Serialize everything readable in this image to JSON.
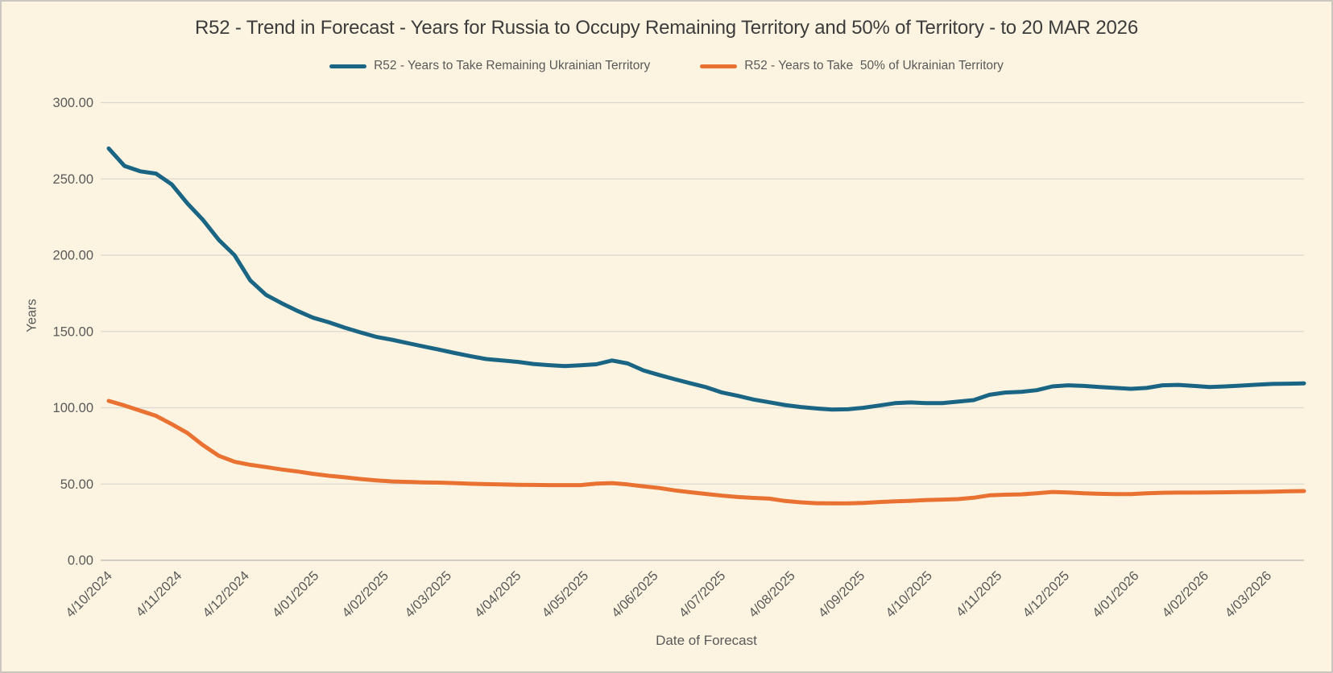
{
  "colors": {
    "background": "#FCF4E1",
    "frame_border": "#C9C7C0",
    "title_text": "#3C3C3C",
    "axis_text": "#595959",
    "gridline": "#DAD8D0",
    "axis_line": "#C2C0B8",
    "series_remaining_blue": "#1A6484",
    "series_50pct_orange": "#E97132"
  },
  "chart_data": {
    "type": "line",
    "title": "R52 - Trend in Forecast - Years for Russia to Occupy Remaining Territory and 50% of Territory - to 20 MAR 2026",
    "xlabel": "Date of Forecast",
    "ylabel": "Years",
    "ylim": [
      0,
      300
    ],
    "grid": "horizontal",
    "legend_position": "top",
    "y_ticks": [
      {
        "value": 0,
        "label": "0.00"
      },
      {
        "value": 50,
        "label": "50.00"
      },
      {
        "value": 100,
        "label": "100.00"
      },
      {
        "value": 150,
        "label": "150.00"
      },
      {
        "value": 200,
        "label": "200.00"
      },
      {
        "value": 250,
        "label": "250.00"
      },
      {
        "value": 300,
        "label": "300.00"
      }
    ],
    "x_ticks": [
      {
        "label": "4/10/2024",
        "date": "2024-10-04"
      },
      {
        "label": "4/11/2024",
        "date": "2024-11-04"
      },
      {
        "label": "4/12/2024",
        "date": "2024-12-04"
      },
      {
        "label": "4/01/2025",
        "date": "2025-01-04"
      },
      {
        "label": "4/02/2025",
        "date": "2025-02-04"
      },
      {
        "label": "4/03/2025",
        "date": "2025-03-04"
      },
      {
        "label": "4/04/2025",
        "date": "2025-04-04"
      },
      {
        "label": "4/05/2025",
        "date": "2025-05-04"
      },
      {
        "label": "4/06/2025",
        "date": "2025-06-04"
      },
      {
        "label": "4/07/2025",
        "date": "2025-07-04"
      },
      {
        "label": "4/08/2025",
        "date": "2025-08-04"
      },
      {
        "label": "4/09/2025",
        "date": "2025-09-04"
      },
      {
        "label": "4/10/2025",
        "date": "2025-10-04"
      },
      {
        "label": "4/11/2025",
        "date": "2025-11-04"
      },
      {
        "label": "4/12/2025",
        "date": "2025-12-04"
      },
      {
        "label": "4/01/2026",
        "date": "2026-01-04"
      },
      {
        "label": "4/02/2026",
        "date": "2026-02-04"
      },
      {
        "label": "4/03/2026",
        "date": "2026-03-04"
      }
    ],
    "dates": [
      "2024-10-04",
      "2024-10-11",
      "2024-10-18",
      "2024-10-25",
      "2024-11-01",
      "2024-11-08",
      "2024-11-15",
      "2024-11-22",
      "2024-11-29",
      "2024-12-06",
      "2024-12-13",
      "2024-12-20",
      "2024-12-27",
      "2025-01-03",
      "2025-01-10",
      "2025-01-17",
      "2025-01-24",
      "2025-01-31",
      "2025-02-07",
      "2025-02-14",
      "2025-02-21",
      "2025-02-28",
      "2025-03-07",
      "2025-03-14",
      "2025-03-21",
      "2025-03-28",
      "2025-04-04",
      "2025-04-11",
      "2025-04-18",
      "2025-04-25",
      "2025-05-02",
      "2025-05-09",
      "2025-05-16",
      "2025-05-23",
      "2025-05-30",
      "2025-06-06",
      "2025-06-13",
      "2025-06-20",
      "2025-06-27",
      "2025-07-04",
      "2025-07-11",
      "2025-07-18",
      "2025-07-25",
      "2025-08-01",
      "2025-08-08",
      "2025-08-15",
      "2025-08-22",
      "2025-08-29",
      "2025-09-05",
      "2025-09-12",
      "2025-09-19",
      "2025-09-26",
      "2025-10-03",
      "2025-10-10",
      "2025-10-17",
      "2025-10-24",
      "2025-10-31",
      "2025-11-07",
      "2025-11-14",
      "2025-11-21",
      "2025-11-28",
      "2025-12-05",
      "2025-12-12",
      "2025-12-19",
      "2025-12-26",
      "2026-01-02",
      "2026-01-09",
      "2026-01-16",
      "2026-01-23",
      "2026-01-30",
      "2026-02-06",
      "2026-02-13",
      "2026-02-20",
      "2026-02-27",
      "2026-03-06",
      "2026-03-13",
      "2026-03-20"
    ],
    "series": [
      {
        "name": "R52 - Years to Take Remaining Ukrainian Territory",
        "color": "#1A6484",
        "values": [
          270,
          258.5,
          255,
          253.5,
          246.5,
          234,
          223,
          210,
          200,
          183.5,
          174,
          168.5,
          163.5,
          159,
          156,
          152.5,
          149.4,
          146.5,
          144.6,
          142.4,
          140.2,
          138.1,
          135.9,
          133.8,
          131.9,
          131,
          130.1,
          128.7,
          127.9,
          127.3,
          127.8,
          128.5,
          131,
          129,
          124.5,
          121.5,
          118.7,
          116,
          113.4,
          110,
          107.8,
          105.4,
          103.6,
          101.8,
          100.5,
          99.5,
          98.8,
          99,
          100,
          101.5,
          103,
          103.5,
          103,
          103,
          104,
          105,
          108.5,
          110,
          110.4,
          111.5,
          114,
          114.7,
          114.3,
          113.6,
          113,
          112.4,
          113,
          114.7,
          115,
          114.3,
          113.6,
          114,
          114.5,
          115.1,
          115.6,
          115.8,
          116
        ]
      },
      {
        "name": "R52 - Years to Take  50% of Ukrainian Territory",
        "color": "#E97132",
        "values": [
          104.5,
          101.5,
          98.1,
          94.7,
          89.3,
          83.5,
          75.4,
          68.5,
          64.6,
          62.6,
          61.1,
          59.5,
          58.2,
          56.7,
          55.4,
          54.4,
          53.3,
          52.4,
          51.7,
          51.4,
          51.1,
          50.9,
          50.6,
          50.2,
          49.9,
          49.7,
          49.5,
          49.4,
          49.3,
          49.3,
          49.3,
          50.3,
          50.6,
          49.7,
          48.5,
          47.4,
          45.8,
          44.6,
          43.5,
          42.4,
          41.5,
          40.9,
          40.4,
          38.9,
          38,
          37.4,
          37.3,
          37.3,
          37.6,
          38.2,
          38.7,
          39,
          39.5,
          39.8,
          40.1,
          41,
          42.6,
          43,
          43.2,
          43.9,
          44.8,
          44.5,
          43.9,
          43.6,
          43.4,
          43.4,
          43.9,
          44.3,
          44.4,
          44.4,
          44.5,
          44.6,
          44.7,
          44.8,
          45,
          45.2,
          45.4
        ]
      }
    ]
  }
}
